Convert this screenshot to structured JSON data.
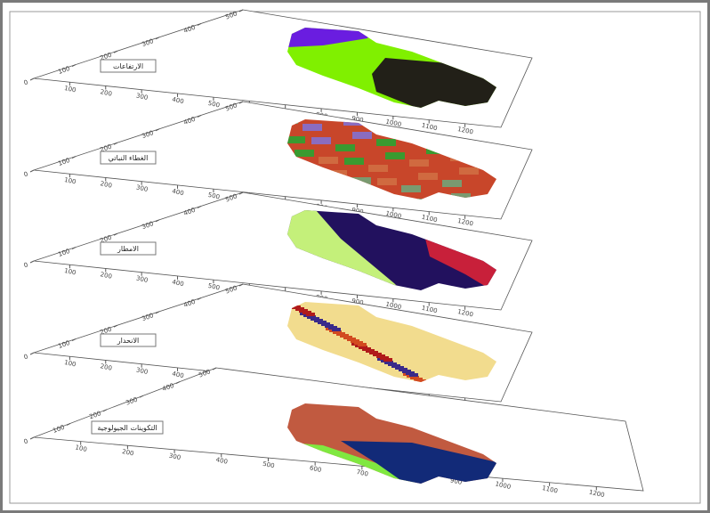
{
  "layers": [
    {
      "label": "الارتفاعات"
    },
    {
      "label": "الغطاء النباتي"
    },
    {
      "label": "الامطار"
    },
    {
      "label": "الانحدار"
    },
    {
      "label": "التكوينات الجيولوجية"
    }
  ],
  "y_ticks": [
    0,
    100,
    200,
    300,
    400,
    500
  ],
  "x_ticks": [
    100,
    200,
    300,
    400,
    500,
    600,
    700,
    800,
    900,
    1000,
    1100,
    1200
  ]
}
